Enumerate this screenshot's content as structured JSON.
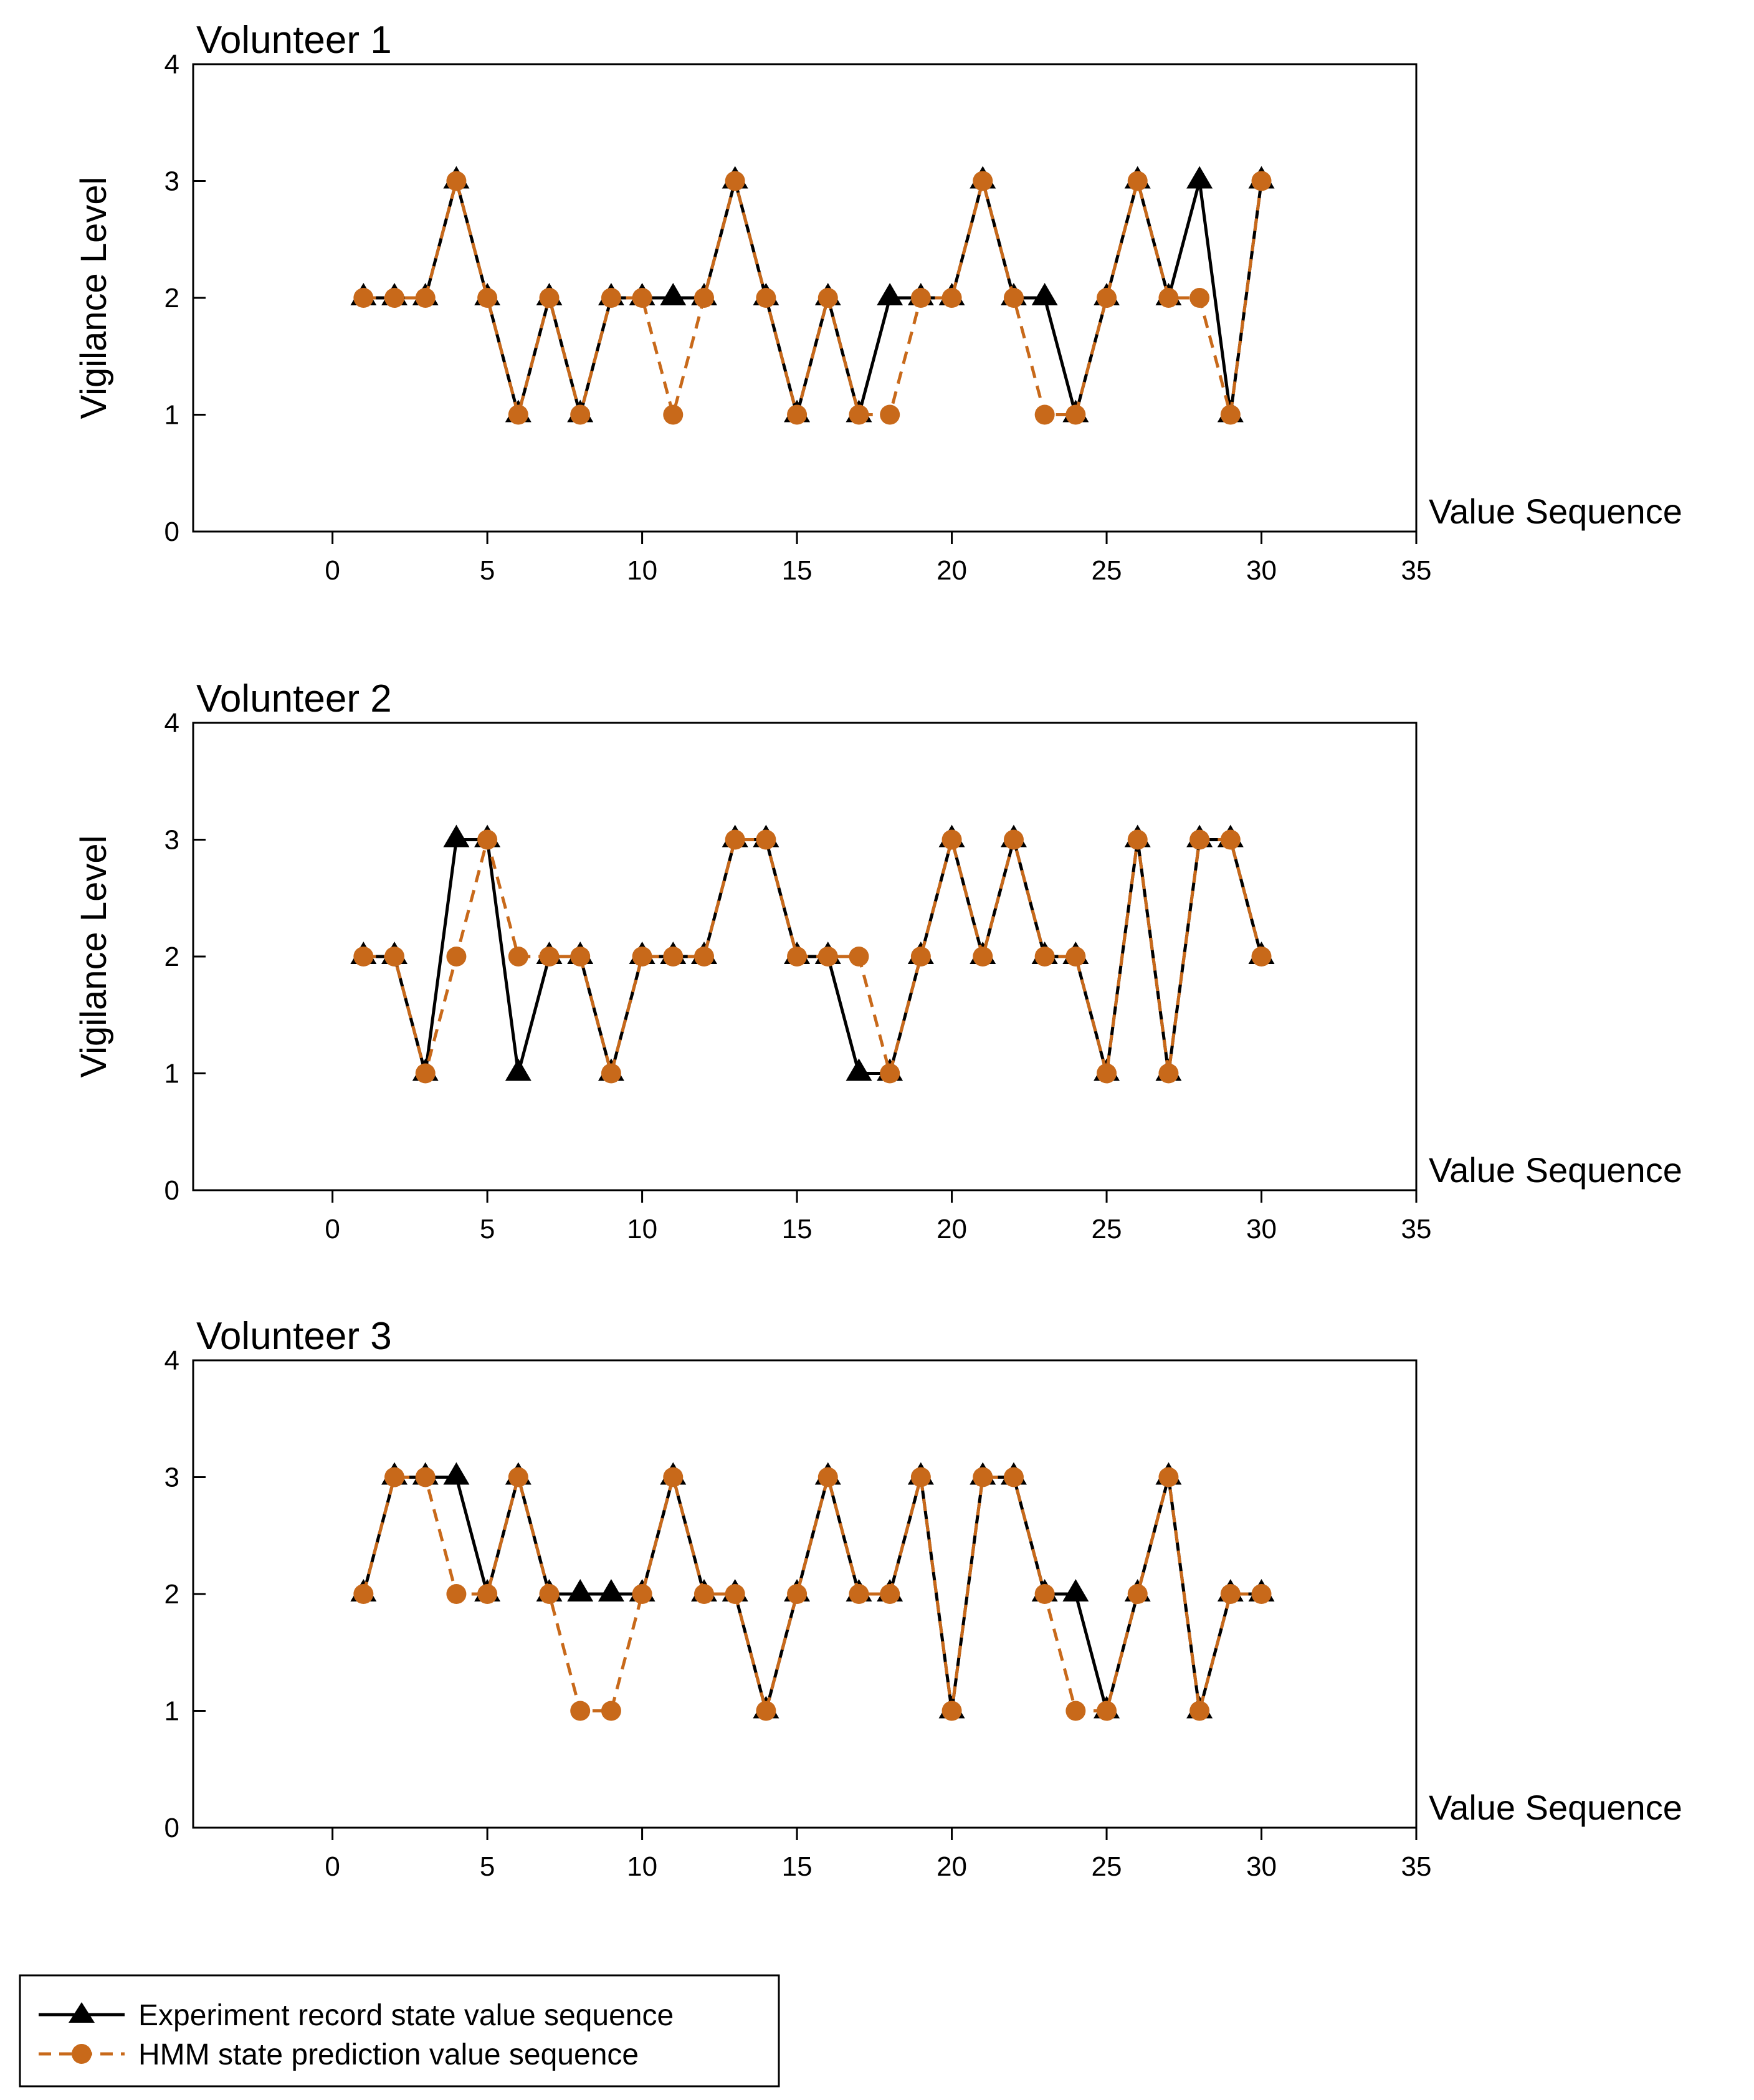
{
  "colors": {
    "experiment": "#000000",
    "hmm": "#C8691A",
    "background": "#ffffff"
  },
  "legend": {
    "experiment_label": "Experiment record state value sequence",
    "hmm_label": "HMM state prediction value sequence"
  },
  "chart_data": [
    {
      "type": "line",
      "title": "Volunteer 1",
      "xlabel": "Value Sequence",
      "ylabel": "Vigilance Level",
      "xlim": [
        -4.5,
        35
      ],
      "ylim": [
        0,
        4
      ],
      "xticks": [
        0,
        5,
        10,
        15,
        20,
        25,
        30,
        35
      ],
      "yticks": [
        0,
        1,
        2,
        3,
        4
      ],
      "grid": false,
      "x": [
        1,
        2,
        3,
        4,
        5,
        6,
        7,
        8,
        9,
        10,
        11,
        12,
        13,
        14,
        15,
        16,
        17,
        18,
        19,
        20,
        21,
        22,
        23,
        24,
        25,
        26,
        27,
        28,
        29,
        30
      ],
      "series": [
        {
          "name": "Experiment record state value sequence",
          "marker": "triangle",
          "line": "solid",
          "values": [
            2,
            2,
            2,
            3,
            2,
            1,
            2,
            1,
            2,
            2,
            2,
            2,
            3,
            2,
            1,
            2,
            1,
            2,
            2,
            2,
            3,
            2,
            2,
            1,
            2,
            3,
            2,
            3,
            1,
            3
          ]
        },
        {
          "name": "HMM state prediction value sequence",
          "marker": "circle",
          "line": "dashed",
          "values": [
            2,
            2,
            2,
            3,
            2,
            1,
            2,
            1,
            2,
            2,
            1,
            2,
            3,
            2,
            1,
            2,
            1,
            1,
            2,
            2,
            3,
            2,
            1,
            1,
            2,
            3,
            2,
            2,
            1,
            3
          ]
        }
      ]
    },
    {
      "type": "line",
      "title": "Volunteer 2",
      "xlabel": "Value Sequence",
      "ylabel": "Vigilance Level",
      "xlim": [
        -4.5,
        35
      ],
      "ylim": [
        0,
        4
      ],
      "xticks": [
        0,
        5,
        10,
        15,
        20,
        25,
        30,
        35
      ],
      "yticks": [
        0,
        1,
        2,
        3,
        4
      ],
      "grid": false,
      "x": [
        1,
        2,
        3,
        4,
        5,
        6,
        7,
        8,
        9,
        10,
        11,
        12,
        13,
        14,
        15,
        16,
        17,
        18,
        19,
        20,
        21,
        22,
        23,
        24,
        25,
        26,
        27,
        28,
        29,
        30
      ],
      "series": [
        {
          "name": "Experiment record state value sequence",
          "marker": "triangle",
          "line": "solid",
          "values": [
            2,
            2,
            1,
            3,
            3,
            1,
            2,
            2,
            1,
            2,
            2,
            2,
            3,
            3,
            2,
            2,
            1,
            1,
            2,
            3,
            2,
            3,
            2,
            2,
            1,
            3,
            1,
            3,
            3,
            2
          ]
        },
        {
          "name": "HMM state prediction value sequence",
          "marker": "circle",
          "line": "dashed",
          "values": [
            2,
            2,
            1,
            2,
            3,
            2,
            2,
            2,
            1,
            2,
            2,
            2,
            3,
            3,
            2,
            2,
            2,
            1,
            2,
            3,
            2,
            3,
            2,
            2,
            1,
            3,
            1,
            3,
            3,
            2
          ]
        }
      ]
    },
    {
      "type": "line",
      "title": "Volunteer 3",
      "xlabel": "Value Sequence",
      "ylabel": "",
      "xlim": [
        -4.5,
        35
      ],
      "ylim": [
        0,
        4
      ],
      "xticks": [
        0,
        5,
        10,
        15,
        20,
        25,
        30,
        35
      ],
      "yticks": [
        0,
        1,
        2,
        3,
        4
      ],
      "grid": false,
      "x": [
        1,
        2,
        3,
        4,
        5,
        6,
        7,
        8,
        9,
        10,
        11,
        12,
        13,
        14,
        15,
        16,
        17,
        18,
        19,
        20,
        21,
        22,
        23,
        24,
        25,
        26,
        27,
        28,
        29,
        30
      ],
      "series": [
        {
          "name": "Experiment record state value sequence",
          "marker": "triangle",
          "line": "solid",
          "values": [
            2,
            3,
            3,
            3,
            2,
            3,
            2,
            2,
            2,
            2,
            3,
            2,
            2,
            1,
            2,
            3,
            2,
            2,
            3,
            1,
            3,
            3,
            2,
            2,
            1,
            2,
            3,
            1,
            2,
            2
          ]
        },
        {
          "name": "HMM state prediction value sequence",
          "marker": "circle",
          "line": "dashed",
          "values": [
            2,
            3,
            3,
            2,
            2,
            3,
            2,
            1,
            1,
            2,
            3,
            2,
            2,
            1,
            2,
            3,
            2,
            2,
            3,
            1,
            3,
            3,
            2,
            1,
            1,
            2,
            3,
            1,
            2,
            2
          ]
        }
      ]
    }
  ]
}
